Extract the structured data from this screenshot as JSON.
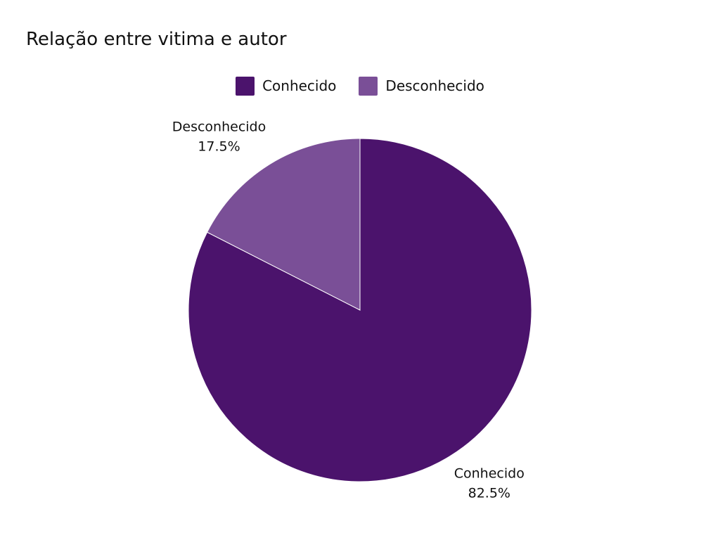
{
  "chart_data": {
    "type": "pie",
    "title": "Relação entre vitima e autor",
    "categories": [
      "Conhecido",
      "Desconhecido"
    ],
    "values": [
      82.5,
      17.5
    ],
    "labels": [
      "82.5%",
      "17.5%"
    ],
    "colors": [
      "#4b136c",
      "#7a4f97"
    ],
    "legend_position": "top-center",
    "slice_labels_position": "outside"
  }
}
